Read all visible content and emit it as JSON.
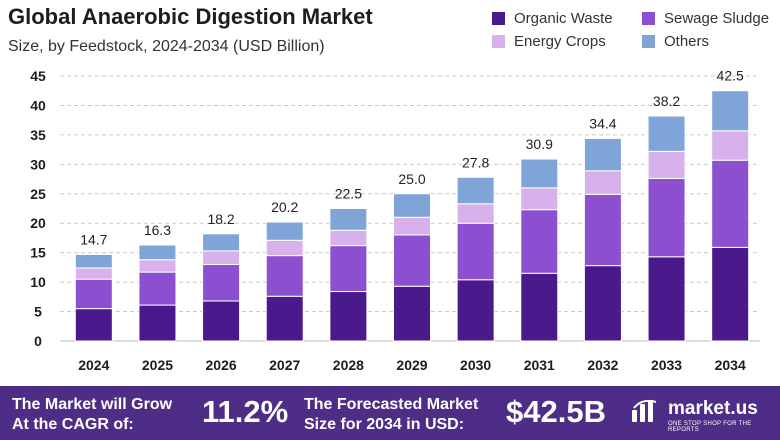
{
  "header": {
    "title": "Global Anaerobic Digestion Market",
    "subtitle": "Size, by Feedstock, 2024-2034 (USD Billion)"
  },
  "legend": [
    {
      "label": "Organic Waste",
      "color": "#4a1a8c"
    },
    {
      "label": "Sewage Sludge",
      "color": "#8b4fd0"
    },
    {
      "label": "Energy Crops",
      "color": "#d6b1ec"
    },
    {
      "label": "Others",
      "color": "#7fa4d8"
    }
  ],
  "chart_data": {
    "type": "bar",
    "stacked": true,
    "categories": [
      "2024",
      "2025",
      "2026",
      "2027",
      "2028",
      "2029",
      "2030",
      "2031",
      "2032",
      "2033",
      "2034"
    ],
    "series": [
      {
        "name": "Organic Waste",
        "color": "#4a1a8c",
        "values": [
          5.5,
          6.1,
          6.8,
          7.6,
          8.4,
          9.3,
          10.4,
          11.5,
          12.8,
          14.3,
          15.9
        ]
      },
      {
        "name": "Sewage Sludge",
        "color": "#8b4fd0",
        "values": [
          5.0,
          5.6,
          6.2,
          6.9,
          7.8,
          8.7,
          9.6,
          10.8,
          12.1,
          13.3,
          14.8
        ]
      },
      {
        "name": "Energy Crops",
        "color": "#d6b1ec",
        "values": [
          1.9,
          2.1,
          2.3,
          2.6,
          2.6,
          3.0,
          3.3,
          3.7,
          4.0,
          4.6,
          5.0
        ]
      },
      {
        "name": "Others",
        "color": "#7fa4d8",
        "values": [
          2.3,
          2.5,
          2.9,
          3.1,
          3.7,
          4.0,
          4.5,
          4.9,
          5.5,
          6.0,
          6.8
        ]
      }
    ],
    "totals": [
      "14.7",
      "16.3",
      "18.2",
      "20.2",
      "22.5",
      "25.0",
      "27.8",
      "30.9",
      "34.4",
      "38.2",
      "42.5"
    ],
    "yticks": [
      0,
      5,
      10,
      15,
      20,
      25,
      30,
      35,
      40,
      45
    ],
    "ylim": [
      0,
      45
    ],
    "grid": "horizontal dashed"
  },
  "footer": {
    "cagr_label_line1": "The Market will Grow",
    "cagr_label_line2": "At the CAGR of:",
    "cagr_value": "11.2%",
    "forecast_label_line1": "The Forecasted Market",
    "forecast_label_line2": "Size for 2034 in USD:",
    "forecast_value": "$42.5B",
    "brand_name": "market.us",
    "brand_tagline": "ONE STOP SHOP FOR THE REPORTS"
  }
}
